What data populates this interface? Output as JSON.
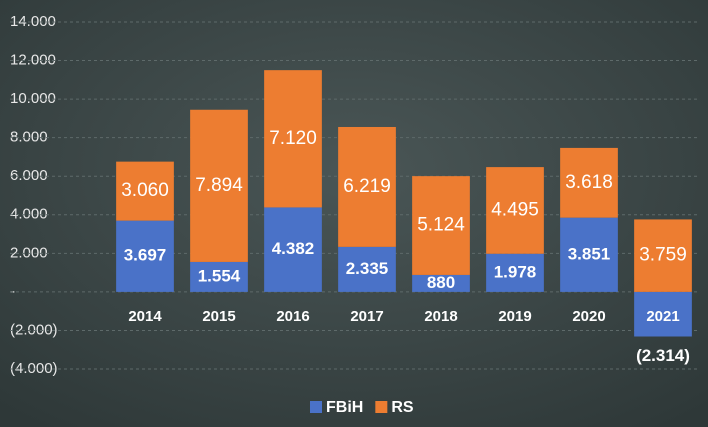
{
  "chart_data": {
    "type": "bar",
    "stacked": true,
    "categories": [
      "2014",
      "2015",
      "2016",
      "2017",
      "2018",
      "2019",
      "2020",
      "2021"
    ],
    "series": [
      {
        "name": "FBiH",
        "color": "#4a72c8",
        "values": [
          3697,
          1554,
          4382,
          2335,
          880,
          1978,
          3851,
          -2314
        ],
        "value_labels": [
          "3.697",
          "1.554",
          "4.382",
          "2.335",
          "880",
          "1.978",
          "3.851",
          "(2.314)"
        ]
      },
      {
        "name": "RS",
        "color": "#ed7d31",
        "values": [
          3060,
          7894,
          7120,
          6219,
          5124,
          4495,
          3618,
          3759
        ],
        "value_labels": [
          "3.060",
          "7.894",
          "7.120",
          "6.219",
          "5.124",
          "4.495",
          "3.618",
          "3.759"
        ]
      }
    ],
    "ylim": [
      -4000,
      14000
    ],
    "yticks": [
      {
        "value": -4000,
        "label": "(4.000)"
      },
      {
        "value": -2000,
        "label": "(2.000)"
      },
      {
        "value": 0,
        "label": "-"
      },
      {
        "value": 2000,
        "label": "2.000"
      },
      {
        "value": 4000,
        "label": "4.000"
      },
      {
        "value": 6000,
        "label": "6.000"
      },
      {
        "value": 8000,
        "label": "8.000"
      },
      {
        "value": 10000,
        "label": "10.000"
      },
      {
        "value": 12000,
        "label": "12.000"
      },
      {
        "value": 14000,
        "label": "14.000"
      }
    ],
    "grid": true,
    "legend": "bottom"
  }
}
